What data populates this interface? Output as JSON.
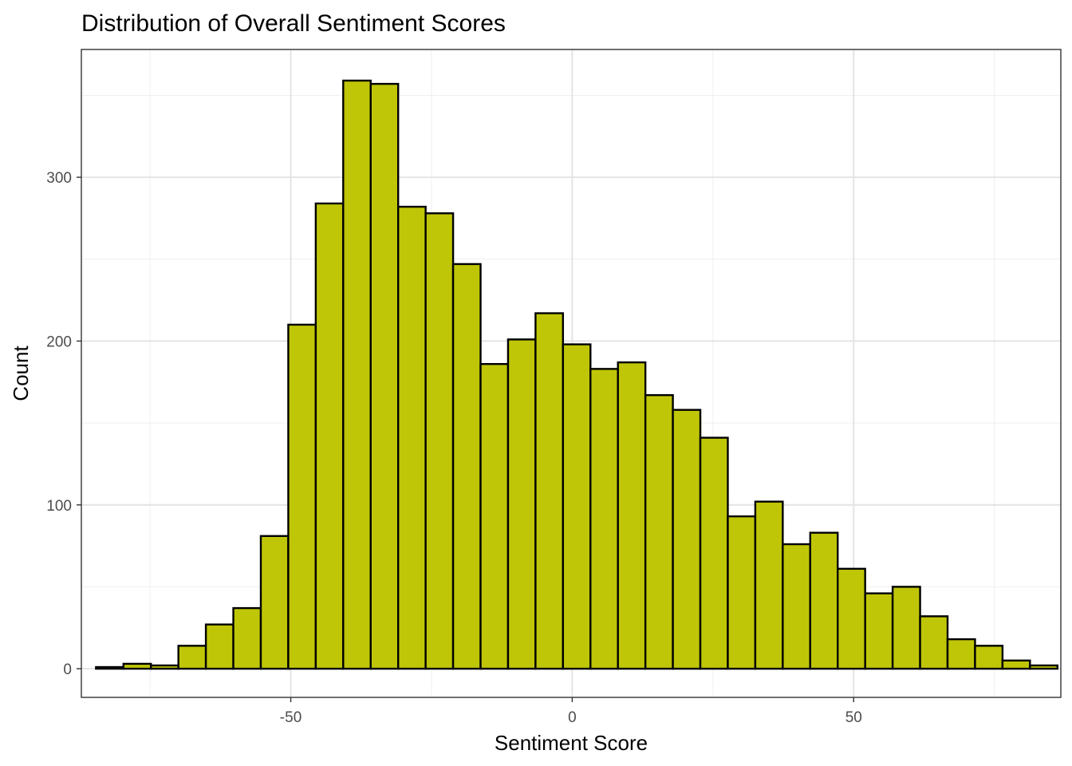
{
  "chart_data": {
    "type": "bar",
    "title": "Distribution of Overall Sentiment Scores",
    "xlabel": "Sentiment Score",
    "ylabel": "Count",
    "xlim": [
      -87.2,
      86.8
    ],
    "ylim": [
      -17.5,
      378
    ],
    "x_ticks": [
      -50,
      0,
      50
    ],
    "x_tick_labels": [
      "-50",
      "0",
      "50"
    ],
    "x_minor_ticks": [
      -75,
      -25,
      25,
      75
    ],
    "y_ticks": [
      0,
      100,
      200,
      300
    ],
    "y_tick_labels": [
      "0",
      "100",
      "200",
      "300"
    ],
    "y_minor_ticks": [
      50,
      150,
      250,
      350
    ],
    "bin_width": 4.88,
    "bins_start": -84.6,
    "values": [
      1,
      3,
      2,
      14,
      27,
      37,
      81,
      210,
      284,
      359,
      357,
      282,
      278,
      247,
      186,
      201,
      217,
      198,
      183,
      187,
      167,
      158,
      141,
      93,
      102,
      76,
      83,
      61,
      46,
      50,
      32,
      18,
      14,
      5,
      2
    ],
    "fill_color": "#bfc607",
    "outline_color": "#000000",
    "grid": true,
    "theme": "bw"
  }
}
